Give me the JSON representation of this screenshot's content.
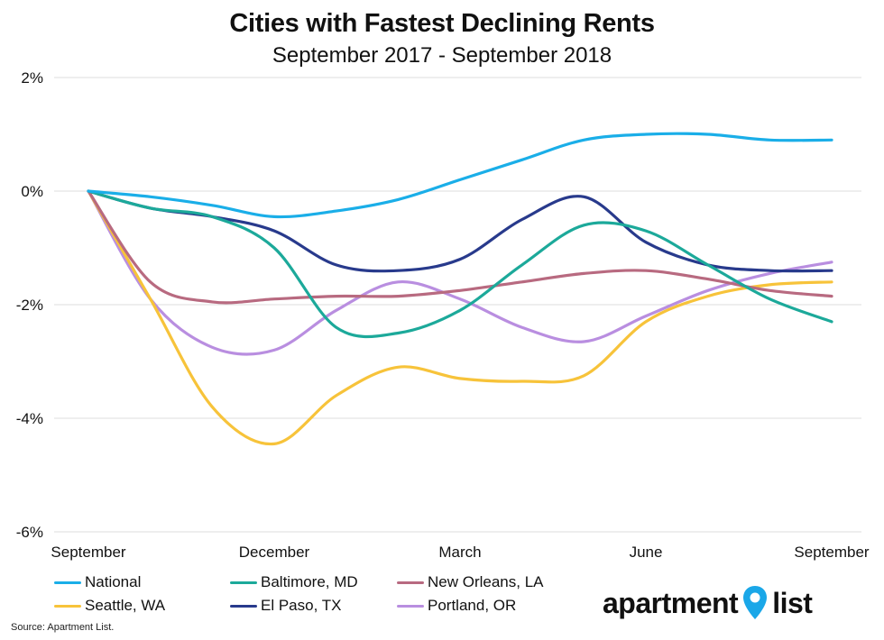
{
  "title": "Cities with Fastest Declining Rents",
  "subtitle": "September 2017 - September 2018",
  "source": "Source: Apartment List.",
  "logo": {
    "left_text": "apartment",
    "right_text": "list",
    "pin_color": "#1aa7e8"
  },
  "chart_data": {
    "type": "line",
    "title": "Cities with Fastest Declining Rents",
    "subtitle": "September 2017 - September 2018",
    "xlabel": "",
    "ylabel": "",
    "x": [
      "Sep 2017",
      "Oct 2017",
      "Nov 2017",
      "Dec 2017",
      "Jan 2018",
      "Feb 2018",
      "Mar 2018",
      "Apr 2018",
      "May 2018",
      "Jun 2018",
      "Jul 2018",
      "Aug 2018",
      "Sep 2018"
    ],
    "x_ticks": [
      "September",
      "December",
      "March",
      "June",
      "September"
    ],
    "y_ticks": [
      "2%",
      "0%",
      "-2%",
      "-4%",
      "-6%"
    ],
    "ylim": [
      -6,
      2
    ],
    "unit": "%",
    "grid": true,
    "legend_position": "bottom",
    "series": [
      {
        "name": "National",
        "color": "#1aaee8",
        "values": [
          0,
          -0.1,
          -0.25,
          -0.45,
          -0.35,
          -0.15,
          0.2,
          0.55,
          0.9,
          1.0,
          1.0,
          0.9,
          0.9
        ]
      },
      {
        "name": "Baltimore, MD",
        "color": "#1ca99a",
        "values": [
          0,
          -0.3,
          -0.45,
          -1.0,
          -2.4,
          -2.5,
          -2.1,
          -1.3,
          -0.6,
          -0.7,
          -1.3,
          -1.9,
          -2.3
        ]
      },
      {
        "name": "New Orleans, LA",
        "color": "#b86a80",
        "values": [
          0,
          -1.6,
          -1.95,
          -1.9,
          -1.85,
          -1.85,
          -1.75,
          -1.6,
          -1.45,
          -1.4,
          -1.55,
          -1.75,
          -1.85
        ]
      },
      {
        "name": "Seattle, WA",
        "color": "#f7c33a",
        "values": [
          0,
          -1.9,
          -3.8,
          -4.45,
          -3.6,
          -3.1,
          -3.3,
          -3.35,
          -3.25,
          -2.3,
          -1.85,
          -1.65,
          -1.6
        ]
      },
      {
        "name": "El Paso, TX",
        "color": "#283a8c",
        "values": [
          0,
          -0.3,
          -0.45,
          -0.7,
          -1.3,
          -1.4,
          -1.2,
          -0.5,
          -0.1,
          -0.9,
          -1.3,
          -1.4,
          -1.4
        ]
      },
      {
        "name": "Portland, OR",
        "color": "#b98ee0",
        "values": [
          0,
          -1.9,
          -2.75,
          -2.8,
          -2.1,
          -1.6,
          -1.9,
          -2.4,
          -2.65,
          -2.2,
          -1.75,
          -1.45,
          -1.25
        ]
      }
    ]
  }
}
